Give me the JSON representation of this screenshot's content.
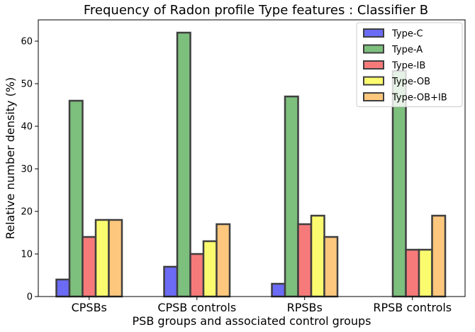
{
  "chart_data": {
    "type": "bar",
    "title": "Frequency of Radon profile Type features : Classifier B",
    "xlabel": "PSB groups and associated control groups",
    "ylabel": "Relative number density (%)",
    "categories": [
      "CPSBs",
      "CPSB controls",
      "RPSBs",
      "RPSB controls"
    ],
    "ylim": [
      0,
      65
    ],
    "yticks": [
      0,
      10,
      20,
      30,
      40,
      50,
      60
    ],
    "grid": false,
    "legend_position": "top-right",
    "series": [
      {
        "name": "Type-C",
        "color": "#6b6bf5",
        "values": [
          4,
          7,
          3,
          0
        ]
      },
      {
        "name": "Type-A",
        "color": "#7dbf7d",
        "values": [
          46,
          62,
          47,
          53
        ]
      },
      {
        "name": "Type-IB",
        "color": "#f77a7a",
        "values": [
          14,
          10,
          17,
          11
        ]
      },
      {
        "name": "Type-OB",
        "color": "#fbfb6f",
        "values": [
          18,
          13,
          19,
          11
        ]
      },
      {
        "name": "Type-OB+IB",
        "color": "#fdc77d",
        "values": [
          18,
          17,
          14,
          19
        ]
      }
    ]
  }
}
